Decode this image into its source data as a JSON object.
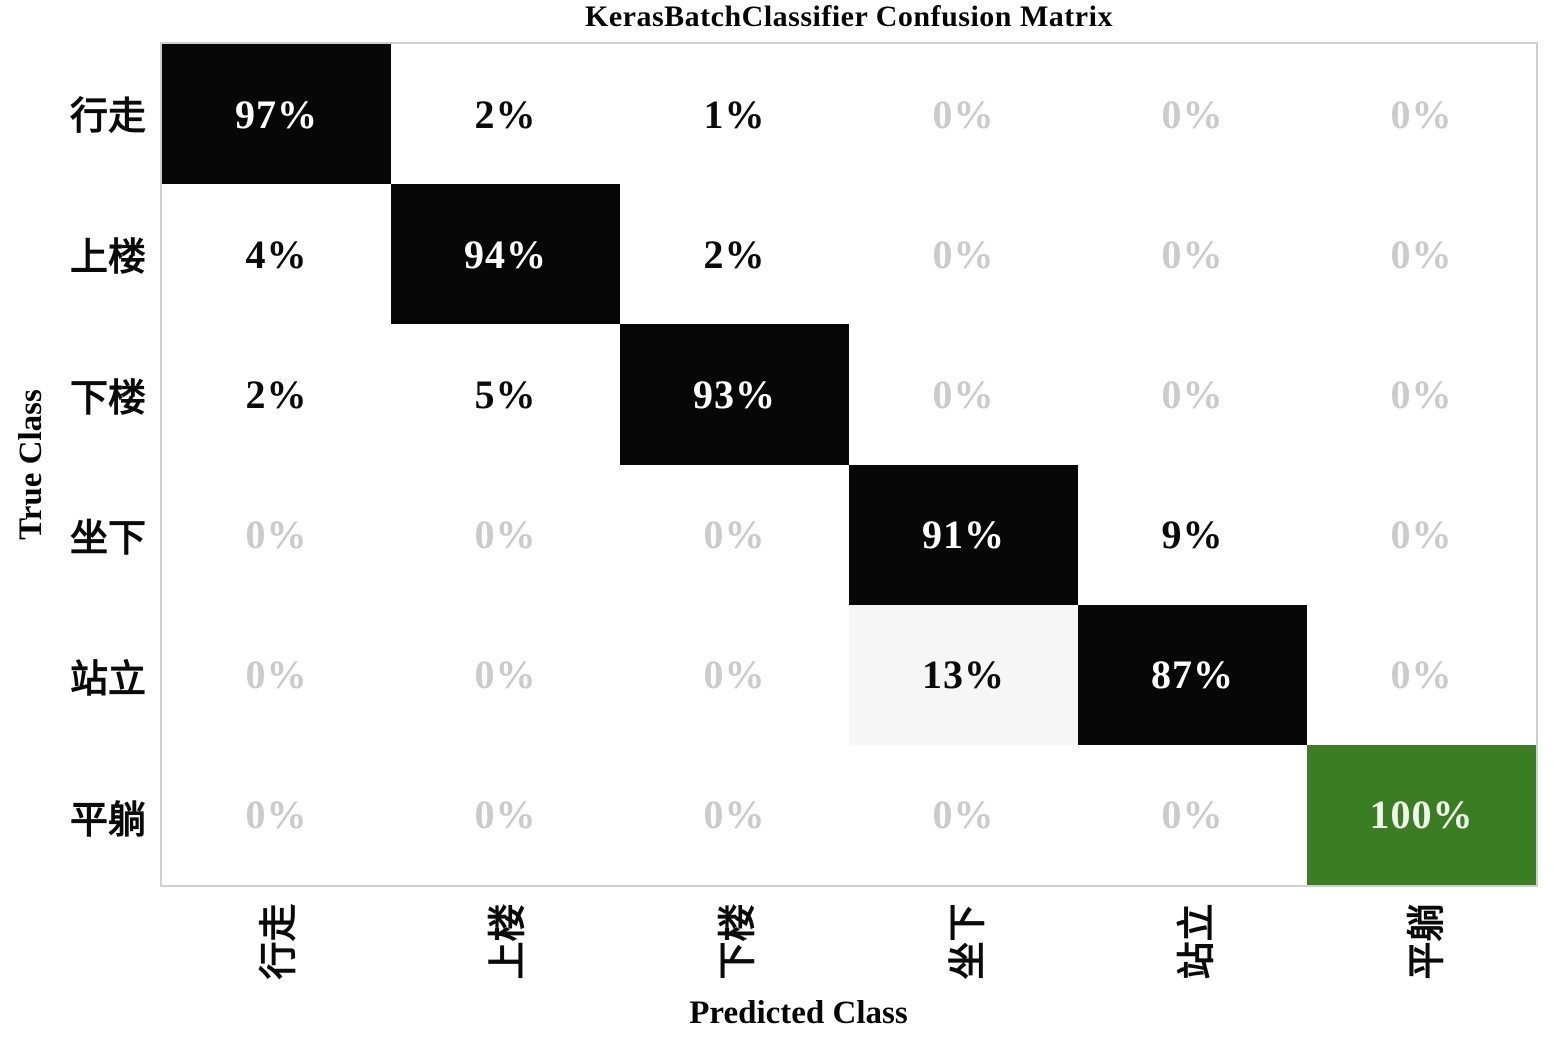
{
  "chart_data": {
    "type": "heatmap",
    "title": "KerasBatchClassifier Confusion Matrix",
    "xlabel": "Predicted Class",
    "ylabel": "True Class",
    "x_tick_labels": [
      "行走",
      "上楼",
      "下楼",
      "坐下",
      "站立",
      "平躺"
    ],
    "y_tick_labels": [
      "行走",
      "上楼",
      "下楼",
      "坐下",
      "站立",
      "平躺"
    ],
    "value_suffix": "%",
    "matrix_percent": [
      [
        97,
        2,
        1,
        0,
        0,
        0
      ],
      [
        4,
        94,
        2,
        0,
        0,
        0
      ],
      [
        2,
        5,
        93,
        0,
        0,
        0
      ],
      [
        0,
        0,
        0,
        91,
        9,
        0
      ],
      [
        0,
        0,
        0,
        13,
        87,
        0
      ],
      [
        0,
        0,
        0,
        0,
        0,
        100
      ]
    ],
    "cell_styles": [
      [
        "black",
        "plain",
        "plain",
        "zero",
        "zero",
        "zero"
      ],
      [
        "plain",
        "black",
        "plain",
        "zero",
        "zero",
        "zero"
      ],
      [
        "plain",
        "plain",
        "black",
        "zero",
        "zero",
        "zero"
      ],
      [
        "zero",
        "zero",
        "zero",
        "black",
        "plain",
        "zero"
      ],
      [
        "zero",
        "zero",
        "zero",
        "light",
        "black",
        "zero"
      ],
      [
        "zero",
        "zero",
        "zero",
        "zero",
        "zero",
        "green"
      ]
    ],
    "legend": "none",
    "grid": "off"
  },
  "colors": {
    "black_cell_bg": "#070707",
    "black_cell_text": "#ffffff",
    "green_cell_bg": "#3a7d22",
    "green_cell_text": "#f0f6ec",
    "light_cell_bg": "#f6f6f6",
    "white_cell_bg": "#ffffff",
    "plain_text": "#0a0a0a",
    "zero_text": "#cbcbcb",
    "spine": "#cfcfcf"
  }
}
